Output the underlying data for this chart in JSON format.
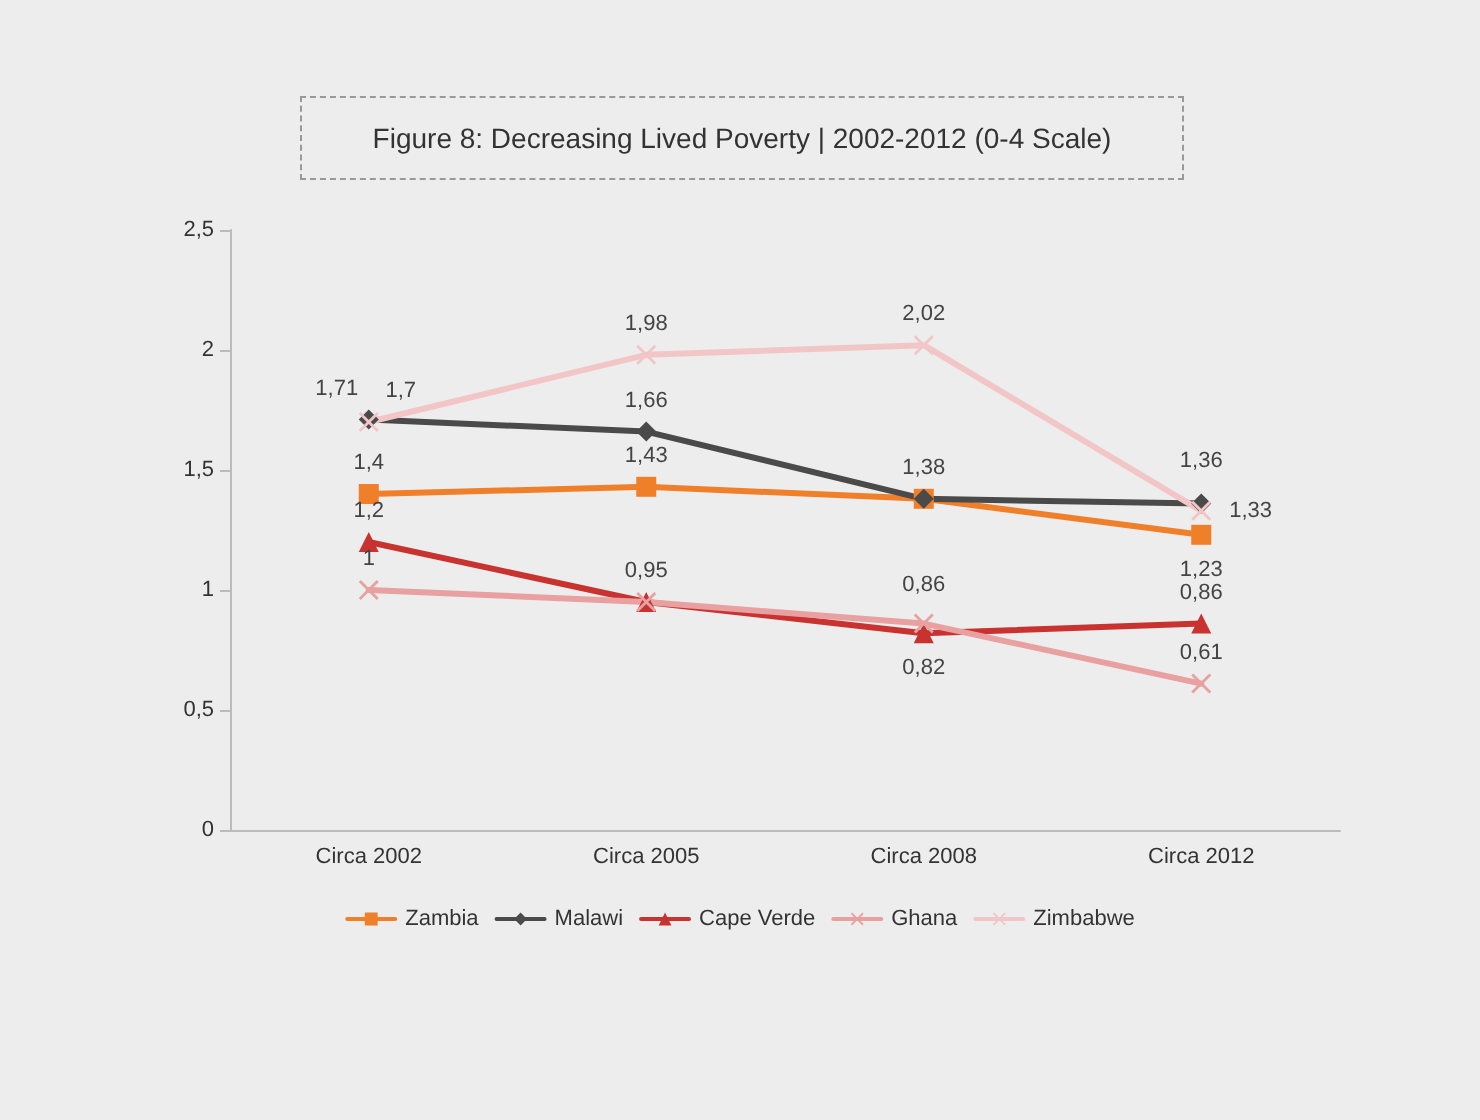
{
  "chart_data": {
    "type": "line",
    "title": "Figure 8: Decreasing Lived Poverty | 2002-2012 (0-4 Scale)",
    "categories": [
      "Circa 2002",
      "Circa 2005",
      "Circa 2008",
      "Circa 2012"
    ],
    "series": [
      {
        "name": "Zambia",
        "color": "#f07f2a",
        "marker": "square",
        "values": [
          1.4,
          1.43,
          1.38,
          1.23
        ],
        "value_labels": [
          "1,4",
          "1,43",
          "1,38",
          "1,23"
        ]
      },
      {
        "name": "Malawi",
        "color": "#4a4a4a",
        "marker": "diamond",
        "values": [
          1.71,
          1.66,
          1.38,
          1.36
        ],
        "value_labels": [
          "1,71",
          "1,66",
          null,
          "1,36"
        ]
      },
      {
        "name": "Cape Verde",
        "color": "#c8322f",
        "marker": "triangle",
        "values": [
          1.2,
          0.95,
          0.82,
          0.86
        ],
        "value_labels": [
          "1,2",
          "0,95",
          "0,82",
          "0,86"
        ]
      },
      {
        "name": "Ghana",
        "color": "#e8a0a0",
        "marker": "cross",
        "values": [
          1,
          0.95,
          0.86,
          0.61
        ],
        "value_labels": [
          "1",
          null,
          "0,86",
          "0,61"
        ]
      },
      {
        "name": "Zimbabwe",
        "color": "#f2c6c6",
        "marker": "cross",
        "values": [
          1.7,
          1.98,
          2.02,
          1.33
        ],
        "value_labels": [
          "1,7",
          "1,98",
          "2,02",
          "1,33"
        ]
      }
    ],
    "ylim": [
      0,
      2.5
    ],
    "yticks": [
      0,
      {
        "value": 0.5,
        "label": "0,5"
      },
      1,
      {
        "value": 1.5,
        "label": "1,5"
      },
      2,
      {
        "value": 2.5,
        "label": "2,5"
      }
    ],
    "grid": false,
    "legend": "bottom"
  }
}
